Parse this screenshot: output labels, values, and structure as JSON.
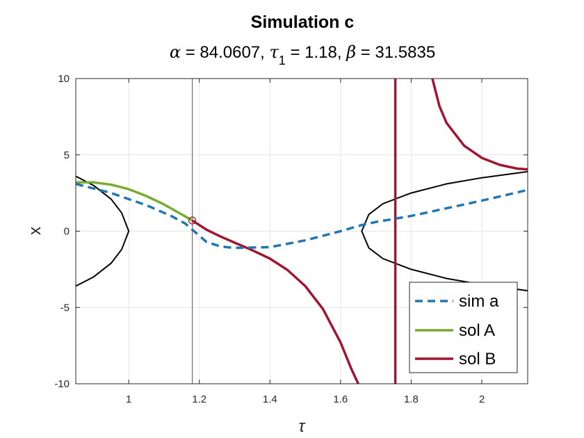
{
  "chart_data": {
    "type": "line",
    "title": "Simulation c",
    "subtitle": {
      "alpha_symbol": "α",
      "alpha_value": " = 84.0607, ",
      "tau_symbol": "τ",
      "tau_sub": "1",
      "tau_value": " = 1.18, ",
      "beta_symbol": "β",
      "beta_value": " = 31.5835"
    },
    "xlabel": "τ",
    "ylabel": "x",
    "xlim": [
      0.85,
      2.13
    ],
    "ylim": [
      -10,
      10
    ],
    "xticks": [
      1,
      1.2,
      1.4,
      1.6,
      1.8,
      2
    ],
    "xtick_labels": [
      "1",
      "1.2",
      "1.4",
      "1.6",
      "1.8",
      "2"
    ],
    "yticks": [
      -10,
      -5,
      0,
      5,
      10
    ],
    "ytick_labels": [
      "-10",
      "-5",
      "0",
      "5",
      "10"
    ],
    "grid": true,
    "legend_position": "bottom-right",
    "vertical_line_x": 1.18,
    "marker": {
      "x": 1.18,
      "y": 0.7
    },
    "series": [
      {
        "name": "sim a",
        "color": "#1f77b4",
        "style": "dashed",
        "x": [
          0.85,
          0.95,
          1.05,
          1.12,
          1.16,
          1.18,
          1.22,
          1.26,
          1.3,
          1.4,
          1.5,
          1.6,
          1.66,
          1.7,
          1.8,
          1.9,
          2.0,
          2.13
        ],
        "y": [
          3.1,
          2.5,
          1.7,
          1.0,
          0.5,
          0.1,
          -0.7,
          -1.0,
          -1.1,
          -1.05,
          -0.6,
          0.0,
          0.4,
          0.6,
          1.0,
          1.5,
          2.0,
          2.7
        ]
      },
      {
        "name": "sol A",
        "color": "#77ac30",
        "style": "solid",
        "x": [
          0.85,
          0.9,
          0.95,
          1.0,
          1.05,
          1.1,
          1.15,
          1.18
        ],
        "y": [
          3.2,
          3.2,
          3.05,
          2.75,
          2.3,
          1.75,
          1.1,
          0.7
        ]
      },
      {
        "name": "sol B",
        "color": "#a2142f",
        "style": "solid",
        "segments": [
          {
            "x": [
              1.18,
              1.22,
              1.26,
              1.3,
              1.35,
              1.4,
              1.45,
              1.5,
              1.55,
              1.6,
              1.63,
              1.65
            ],
            "y": [
              0.7,
              0.1,
              -0.35,
              -0.75,
              -1.25,
              -1.8,
              -2.55,
              -3.6,
              -5.1,
              -7.3,
              -9.0,
              -10.0
            ]
          },
          {
            "x": [
              1.755,
              1.755
            ],
            "y": [
              -10,
              10
            ]
          },
          {
            "x": [
              1.86,
              1.88,
              1.9,
              1.95,
              2.0,
              2.05,
              2.1,
              2.13
            ],
            "y": [
              10.0,
              8.2,
              7.1,
              5.6,
              4.8,
              4.35,
              4.1,
              4.05
            ]
          }
        ]
      },
      {
        "name": "",
        "color": "#000000",
        "style": "thin",
        "segments": [
          {
            "x": [
              0.85,
              0.9,
              0.95,
              0.98,
              1.0,
              0.98,
              0.95,
              0.9,
              0.85
            ],
            "y": [
              3.6,
              3.0,
              2.1,
              1.2,
              0.0,
              -1.2,
              -2.1,
              -3.0,
              -3.6
            ]
          },
          {
            "x": [
              2.13,
              2.0,
              1.9,
              1.8,
              1.72,
              1.68,
              1.66,
              1.68,
              1.72,
              1.8,
              1.9,
              2.0,
              2.13
            ],
            "y": [
              3.9,
              3.5,
              3.1,
              2.5,
              1.8,
              1.1,
              0.0,
              -1.1,
              -1.8,
              -2.5,
              -3.1,
              -3.5,
              -3.9
            ]
          }
        ]
      }
    ]
  }
}
